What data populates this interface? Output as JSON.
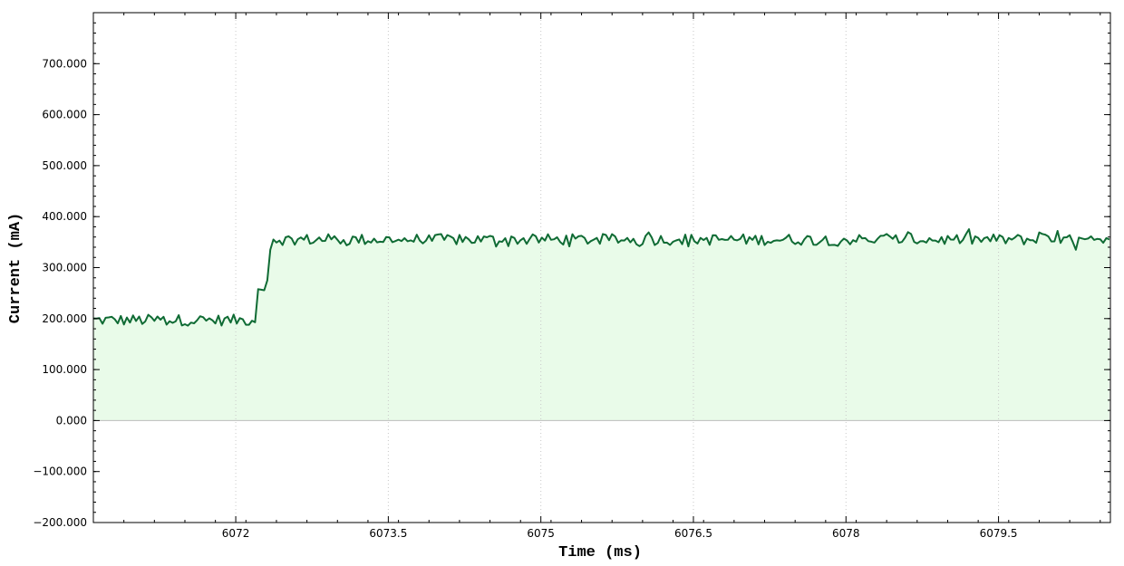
{
  "chart_data": {
    "type": "area",
    "title": "",
    "xlabel": "Time (ms)",
    "ylabel": "Current (mA)",
    "xlim": [
      6070.6,
      6080.6
    ],
    "ylim": [
      -200,
      800
    ],
    "x_ticks": [
      6072,
      6073.5,
      6075,
      6076.5,
      6078,
      6079.5
    ],
    "x_tick_labels": [
      "6072",
      "6073.5",
      "6075",
      "6076.5",
      "6078",
      "6079.5"
    ],
    "y_ticks": [
      -200,
      -100,
      0,
      100,
      200,
      300,
      400,
      500,
      600,
      700
    ],
    "y_tick_labels": [
      "−200.000",
      "−100.000",
      "0.000",
      "100.000",
      "200.000",
      "300.000",
      "400.000",
      "500.000",
      "600.000",
      "700.000"
    ],
    "grid": "vertical dotted",
    "colors": {
      "line": "#0f6b34",
      "fill": "#e9fbe9",
      "zero_line": "#bdbdbd",
      "grid": "#c8c8c8"
    },
    "series": [
      {
        "x": [
          6070.6,
          6071.5,
          6071.6,
          6072.2,
          6072.21,
          6072.3,
          6072.35,
          6072.4,
          6073.0,
          6074.0,
          6075.0,
          6076.0,
          6077.0,
          6078.0,
          6079.0,
          6080.0,
          6080.6
        ],
        "values": [
          197,
          197,
          197,
          197,
          258,
          255,
          355,
          355,
          355,
          355,
          355,
          355,
          355,
          355,
          355,
          355,
          350
        ]
      }
    ]
  }
}
